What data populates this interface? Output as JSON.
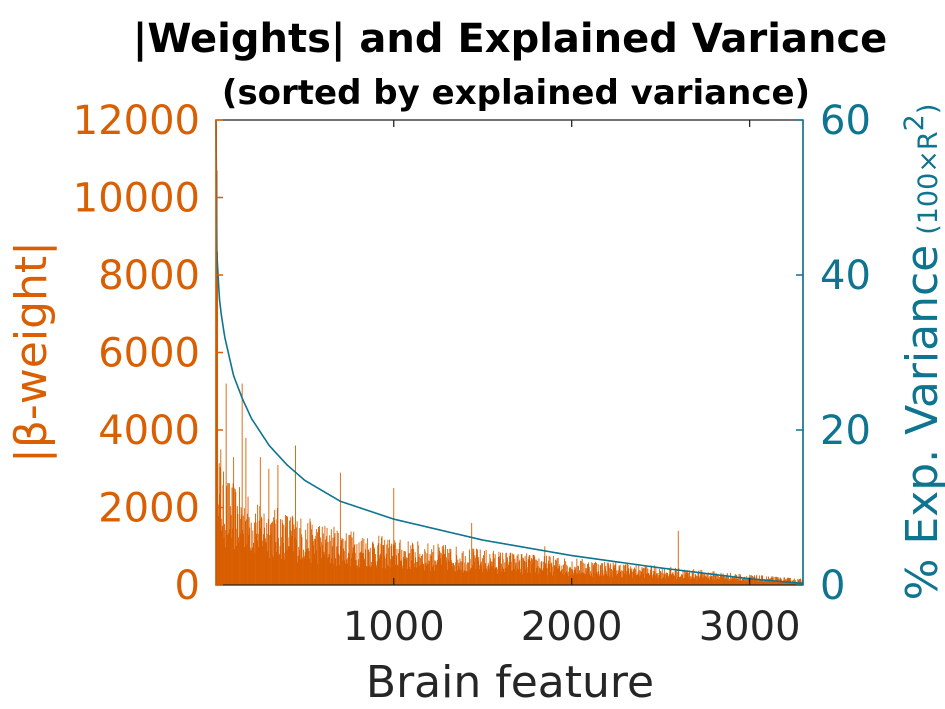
{
  "chart_data": {
    "type": "bar",
    "title": "|Weights| and Explained Variance",
    "subtitle": "(sorted by explained variance)",
    "xlabel": "Brain feature",
    "ylabel_left": "|β-weight|",
    "ylabel_right_main": "% Exp. Variance",
    "ylabel_right_sub": "(100×R",
    "ylabel_right_sup": "2",
    "ylabel_right_close": ")",
    "xlim": [
      1,
      3300
    ],
    "ylim_left": [
      0,
      12000
    ],
    "ylim_right": [
      0,
      60
    ],
    "xticks": [
      1000,
      2000,
      3000
    ],
    "xtick_labels": [
      "1000",
      "2000",
      "3000"
    ],
    "yticks_left": [
      0,
      2000,
      4000,
      6000,
      8000,
      10000,
      12000
    ],
    "ytick_labels_left": [
      "0",
      "2000",
      "4000",
      "6000",
      "8000",
      "10000",
      "12000"
    ],
    "yticks_right": [
      0,
      20,
      40,
      60
    ],
    "ytick_labels_right": [
      "0",
      "20",
      "40",
      "60"
    ],
    "grid": false,
    "legend": "none",
    "colors": {
      "bars": "#D95F02",
      "line": "#0E7490",
      "axis": "#262626"
    },
    "series": [
      {
        "name": "|β-weight|",
        "type": "bar",
        "axis": "left",
        "envelope_x": [
          1,
          5,
          20,
          50,
          100,
          200,
          300,
          500,
          700,
          1000,
          1500,
          2000,
          2500,
          3000,
          3300
        ],
        "envelope_y": [
          11500,
          9000,
          3000,
          2600,
          2400,
          2100,
          1900,
          1600,
          1350,
          1100,
          850,
          650,
          450,
          250,
          150
        ],
        "spikes_x": [
          5,
          8,
          10,
          30,
          60,
          100,
          150,
          170,
          250,
          300,
          350,
          450,
          700,
          1000,
          1440,
          1850,
          2600
        ],
        "spikes_y": [
          11900,
          10700,
          8600,
          3500,
          5200,
          3300,
          5200,
          3800,
          3300,
          3000,
          3100,
          3600,
          2900,
          2500,
          1600,
          1000,
          1400
        ]
      },
      {
        "name": "% Exp. Variance",
        "type": "line",
        "axis": "right",
        "x": [
          1,
          5,
          10,
          20,
          30,
          50,
          75,
          100,
          150,
          200,
          300,
          400,
          500,
          700,
          1000,
          1500,
          2000,
          2500,
          3000,
          3300
        ],
        "y": [
          60,
          43,
          41,
          37,
          35,
          32,
          29.5,
          27,
          24,
          21.5,
          18,
          15.5,
          13.5,
          10.8,
          8.5,
          5.8,
          3.8,
          2.2,
          0.8,
          0.2
        ]
      }
    ]
  }
}
